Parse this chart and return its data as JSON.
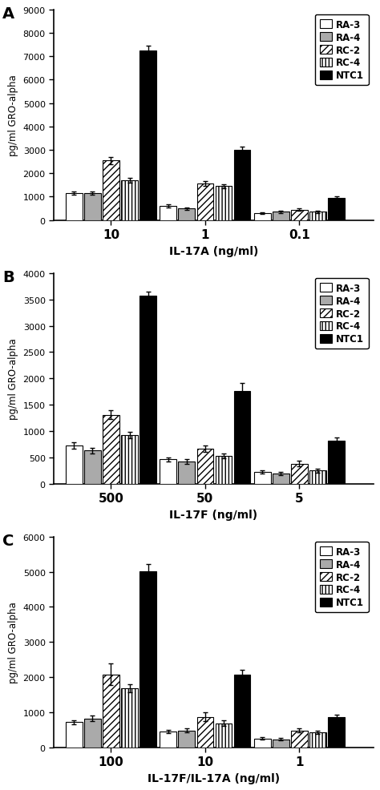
{
  "panel_A": {
    "xlabel": "IL-17A (ng/ml)",
    "ylabel": "pg/ml GRO-alpha",
    "ylim": [
      0,
      9000
    ],
    "yticks": [
      0,
      1000,
      2000,
      3000,
      4000,
      5000,
      6000,
      7000,
      8000,
      9000
    ],
    "xtick_labels": [
      "10",
      "1",
      "0.1"
    ],
    "groups": [
      {
        "values": [
          1150,
          1150,
          2550,
          1700,
          7250
        ],
        "errors": [
          80,
          80,
          150,
          100,
          200
        ]
      },
      {
        "values": [
          600,
          500,
          1550,
          1450,
          3000
        ],
        "errors": [
          60,
          50,
          100,
          80,
          150
        ]
      },
      {
        "values": [
          300,
          350,
          450,
          350,
          950
        ],
        "errors": [
          40,
          40,
          50,
          40,
          80
        ]
      }
    ]
  },
  "panel_B": {
    "xlabel": "IL-17F (ng/ml)",
    "ylabel": "pg/ml GRO-alpha",
    "ylim": [
      0,
      4000
    ],
    "yticks": [
      0,
      500,
      1000,
      1500,
      2000,
      2500,
      3000,
      3500,
      4000
    ],
    "xtick_labels": [
      "500",
      "50",
      "5"
    ],
    "groups": [
      {
        "values": [
          730,
          630,
          1310,
          920,
          3570
        ],
        "errors": [
          60,
          50,
          80,
          60,
          80
        ]
      },
      {
        "values": [
          460,
          420,
          670,
          530,
          1760
        ],
        "errors": [
          40,
          40,
          60,
          50,
          150
        ]
      },
      {
        "values": [
          220,
          200,
          380,
          250,
          820
        ],
        "errors": [
          30,
          30,
          50,
          40,
          60
        ]
      }
    ]
  },
  "panel_C": {
    "xlabel": "IL-17F/IL-17A (ng/ml)",
    "ylabel": "pg/ml GRO-alpha",
    "ylim": [
      0,
      6000
    ],
    "yticks": [
      0,
      1000,
      2000,
      3000,
      4000,
      5000,
      6000
    ],
    "xtick_labels": [
      "100",
      "10",
      "1"
    ],
    "groups": [
      {
        "values": [
          720,
          820,
          2080,
          1680,
          5020
        ],
        "errors": [
          60,
          80,
          300,
          120,
          200
        ]
      },
      {
        "values": [
          450,
          480,
          870,
          680,
          2080
        ],
        "errors": [
          50,
          50,
          120,
          80,
          120
        ]
      },
      {
        "values": [
          250,
          230,
          480,
          420,
          850
        ],
        "errors": [
          40,
          30,
          60,
          50,
          80
        ]
      }
    ]
  },
  "series_labels": [
    "RA-3",
    "RA-4",
    "RC-2",
    "RC-4",
    "NTC1"
  ],
  "bar_colors": [
    "white",
    "#aaaaaa",
    "white",
    "white",
    "black"
  ],
  "hatches": [
    "",
    "",
    "////",
    "||||",
    ""
  ],
  "edgecolors": [
    "black",
    "black",
    "black",
    "black",
    "black"
  ],
  "panel_letters": [
    "A",
    "B",
    "C"
  ]
}
